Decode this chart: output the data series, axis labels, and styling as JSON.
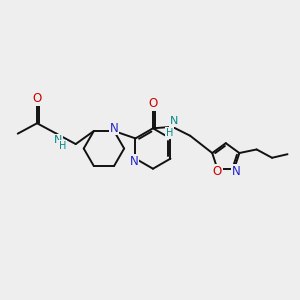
{
  "bg_color": "#eeeeee",
  "atom_color_N": "#2222cc",
  "atom_color_O": "#cc0000",
  "atom_color_NH": "#008888",
  "bond_color": "#111111",
  "bond_lw": 1.4,
  "figsize": [
    3.0,
    3.0
  ],
  "dpi": 100,
  "xlim": [
    0,
    10
  ],
  "ylim": [
    0,
    10
  ]
}
